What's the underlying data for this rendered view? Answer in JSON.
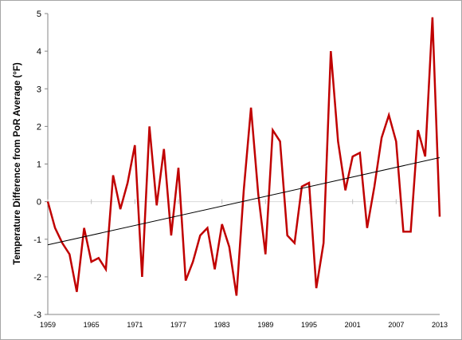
{
  "chart_data": {
    "type": "line",
    "title": "",
    "xlabel": "",
    "ylabel": "Temperature Difference from PoR Average (°F)",
    "ylim": [
      -3,
      5
    ],
    "xlim": [
      1959,
      2013
    ],
    "yticks": [
      "5",
      "4",
      "3",
      "2",
      "1",
      "0",
      "-1",
      "-2",
      "-3"
    ],
    "xticks": [
      "1959",
      "1965",
      "1971",
      "1977",
      "1983",
      "1989",
      "1995",
      "2001",
      "2007",
      "2013"
    ],
    "grid": false,
    "legend": "none",
    "series": [
      {
        "color": "#c00000",
        "x": [
          1959,
          1960,
          1961,
          1962,
          1963,
          1964,
          1965,
          1966,
          1967,
          1968,
          1969,
          1970,
          1971,
          1972,
          1973,
          1974,
          1975,
          1976,
          1977,
          1978,
          1979,
          1980,
          1981,
          1982,
          1983,
          1984,
          1985,
          1986,
          1987,
          1988,
          1989,
          1990,
          1991,
          1992,
          1993,
          1994,
          1995,
          1996,
          1997,
          1998,
          1999,
          2000,
          2001,
          2002,
          2003,
          2004,
          2005,
          2006,
          2007,
          2008,
          2009,
          2010,
          2011,
          2012,
          2013
        ],
        "y": [
          0.0,
          -0.7,
          -1.1,
          -1.4,
          -2.4,
          -0.7,
          -1.6,
          -1.5,
          -1.8,
          0.7,
          -0.2,
          0.5,
          1.5,
          -2.0,
          2.0,
          -0.1,
          1.4,
          -0.9,
          0.9,
          -2.1,
          -1.6,
          -0.9,
          -0.7,
          -1.8,
          -0.6,
          -1.2,
          -2.5,
          0.3,
          2.5,
          0.2,
          -1.4,
          1.9,
          1.6,
          -0.9,
          -1.1,
          0.4,
          0.5,
          -2.3,
          -1.1,
          4.0,
          1.6,
          0.3,
          1.2,
          1.3,
          -0.7,
          0.4,
          1.7,
          2.3,
          1.6,
          -0.8,
          -0.8,
          1.9,
          1.2,
          4.9,
          -0.4
        ]
      },
      {
        "kind": "trendline",
        "color": "#000000",
        "x": [
          1959,
          2013
        ],
        "y": [
          -1.15,
          1.17
        ]
      }
    ]
  }
}
